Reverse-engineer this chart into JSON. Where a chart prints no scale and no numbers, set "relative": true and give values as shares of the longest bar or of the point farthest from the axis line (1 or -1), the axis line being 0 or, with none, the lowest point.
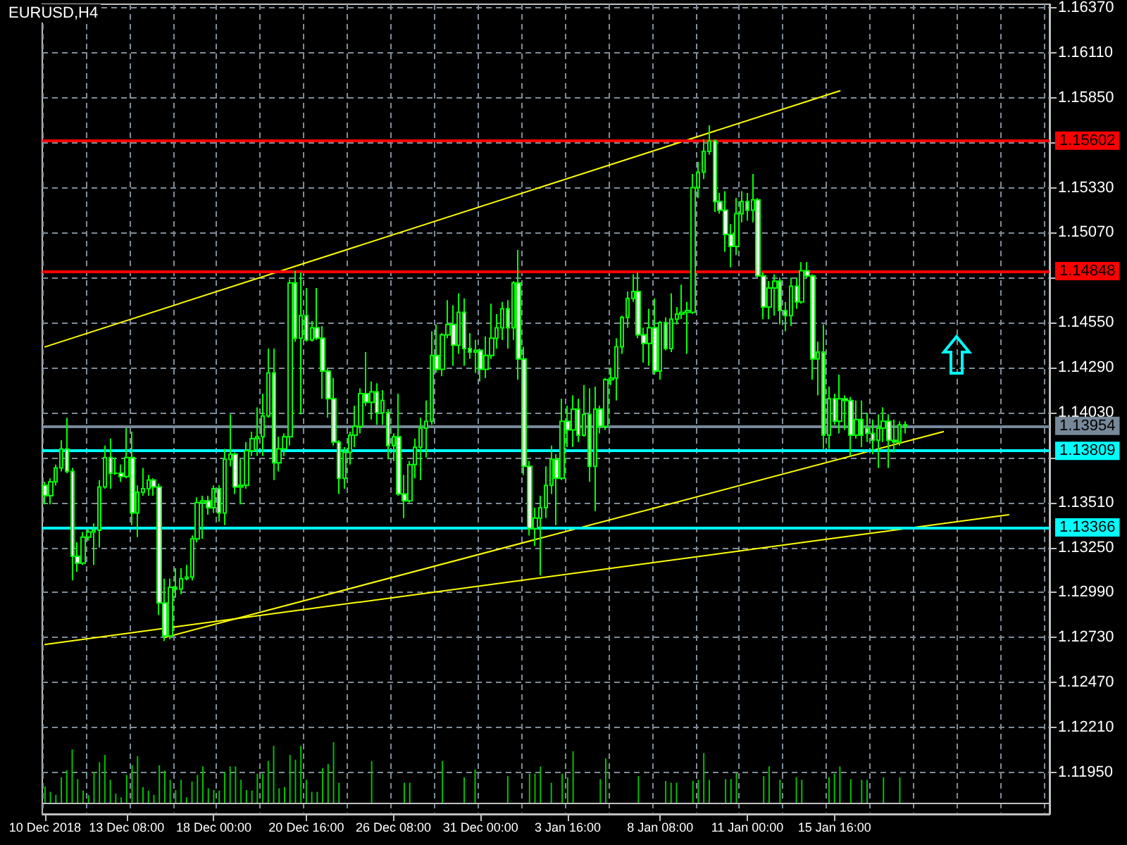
{
  "chart_data": [
    {
      "type": "candlestick",
      "title": "EURUSD,H4",
      "color": "#00ff00",
      "grid": true,
      "categories": [
        "10 Dec 2018",
        null,
        null,
        null,
        null,
        null,
        null,
        null,
        null,
        null,
        null,
        null,
        null,
        null,
        null,
        "13 Dec 08:00",
        null,
        null,
        null,
        null,
        null,
        null,
        null,
        null,
        null,
        null,
        null,
        null,
        null,
        null,
        null,
        "18 Dec 00:00",
        null,
        null,
        null,
        null,
        null,
        null,
        null,
        null,
        null,
        null,
        null,
        null,
        null,
        null,
        null,
        null,
        "20 Dec 16:00",
        null,
        null,
        null,
        null,
        null,
        null,
        null,
        null,
        null,
        null,
        null,
        null,
        null,
        null,
        null,
        "26 Dec 08:00",
        null,
        null,
        null,
        null,
        null,
        null,
        null,
        null,
        null,
        null,
        null,
        null,
        null,
        null,
        null,
        "31 Dec 00:00",
        null,
        null,
        null,
        null,
        null,
        null,
        null,
        null,
        null,
        null,
        null,
        null,
        null,
        null,
        null,
        "3 Jan 16:00",
        null,
        null,
        null,
        null,
        null,
        null,
        null,
        null,
        null,
        null,
        null,
        null,
        null,
        null,
        null,
        null,
        "8 Jan 08:00",
        null,
        null,
        null,
        null,
        null,
        null,
        null,
        null,
        null,
        null,
        null,
        null,
        null,
        null,
        null,
        "11 Jan 00:00",
        null,
        null,
        null,
        null,
        null,
        null,
        null,
        null,
        null,
        null,
        null,
        null,
        null,
        null,
        null,
        "15 Jan 16:00",
        null,
        null,
        null,
        null,
        null,
        null,
        null,
        null,
        null,
        null,
        null,
        null,
        null,
        null,
        null,
        null,
        null,
        null,
        null,
        null,
        null,
        null,
        null,
        null,
        null,
        null,
        null,
        null,
        null,
        null,
        null,
        null,
        null,
        null,
        null,
        null,
        null,
        null,
        null
      ],
      "ohlc": [
        [
          1.1361,
          1.1363,
          1.135,
          1.1355
        ],
        [
          1.1355,
          1.1365,
          1.135,
          1.1363
        ],
        [
          1.1363,
          1.1373,
          1.1361,
          1.1371
        ],
        [
          1.1371,
          1.1387,
          1.1369,
          1.1382
        ],
        [
          1.1382,
          1.14,
          1.1368,
          1.1369
        ],
        [
          1.1369,
          1.1371,
          1.1306,
          1.132
        ],
        [
          1.132,
          1.1328,
          1.1311,
          1.1316
        ],
        [
          1.1316,
          1.1334,
          1.1315,
          1.1331
        ],
        [
          1.1331,
          1.1336,
          1.1329,
          1.1334
        ],
        [
          1.1334,
          1.1339,
          1.1315,
          1.1335
        ],
        [
          1.1335,
          1.1364,
          1.1325,
          1.136
        ],
        [
          1.136,
          1.1384,
          1.1359,
          1.1377
        ],
        [
          1.1377,
          1.1388,
          1.1359,
          1.1368
        ],
        [
          1.1368,
          1.1377,
          1.1367,
          1.1368
        ],
        [
          1.1368,
          1.1373,
          1.1363,
          1.1366
        ],
        [
          1.1366,
          1.1394,
          1.1365,
          1.1377
        ],
        [
          1.1377,
          1.1392,
          1.1338,
          1.1345
        ],
        [
          1.1345,
          1.1361,
          1.1331,
          1.1357
        ],
        [
          1.1357,
          1.1371,
          1.1355,
          1.1359
        ],
        [
          1.1359,
          1.1367,
          1.1355,
          1.1364
        ],
        [
          1.1364,
          1.1365,
          1.1355,
          1.136
        ],
        [
          1.136,
          1.1362,
          1.1286,
          1.1293
        ],
        [
          1.1293,
          1.1307,
          1.1271,
          1.1274
        ],
        [
          1.1274,
          1.1307,
          1.1272,
          1.1302
        ],
        [
          1.1302,
          1.1313,
          1.1296,
          1.1301
        ],
        [
          1.1301,
          1.1313,
          1.1298,
          1.1307
        ],
        [
          1.1307,
          1.1315,
          1.1306,
          1.1308
        ],
        [
          1.1308,
          1.1332,
          1.1306,
          1.133
        ],
        [
          1.133,
          1.1354,
          1.1328,
          1.1351
        ],
        [
          1.1351,
          1.1355,
          1.133,
          1.1352
        ],
        [
          1.1352,
          1.1355,
          1.1344,
          1.1348
        ],
        [
          1.1348,
          1.1361,
          1.1345,
          1.1359
        ],
        [
          1.1359,
          1.1361,
          1.134,
          1.1345
        ],
        [
          1.1345,
          1.1382,
          1.1338,
          1.1376
        ],
        [
          1.1376,
          1.1402,
          1.1372,
          1.1379
        ],
        [
          1.1379,
          1.138,
          1.1356,
          1.136
        ],
        [
          1.136,
          1.1376,
          1.135,
          1.1361
        ],
        [
          1.1361,
          1.1386,
          1.1359,
          1.1381
        ],
        [
          1.1381,
          1.1392,
          1.1378,
          1.1388
        ],
        [
          1.1388,
          1.1406,
          1.1378,
          1.1389
        ],
        [
          1.1389,
          1.1414,
          1.1378,
          1.1401
        ],
        [
          1.1401,
          1.144,
          1.14,
          1.1426
        ],
        [
          1.1426,
          1.144,
          1.1364,
          1.1374
        ],
        [
          1.1374,
          1.1389,
          1.1369,
          1.1382
        ],
        [
          1.1382,
          1.1391,
          1.1378,
          1.1389
        ],
        [
          1.1389,
          1.148,
          1.1384,
          1.1478
        ],
        [
          1.1478,
          1.1485,
          1.1444,
          1.1446
        ],
        [
          1.1446,
          1.1484,
          1.1402,
          1.1459
        ],
        [
          1.1459,
          1.1475,
          1.1444,
          1.1445
        ],
        [
          1.1445,
          1.1456,
          1.1444,
          1.1452
        ],
        [
          1.1452,
          1.1475,
          1.1445,
          1.1446
        ],
        [
          1.1446,
          1.1453,
          1.1411,
          1.1427
        ],
        [
          1.1427,
          1.1429,
          1.14,
          1.1411
        ],
        [
          1.1411,
          1.1423,
          1.1384,
          1.1386
        ],
        [
          1.1386,
          1.1387,
          1.1356,
          1.1365
        ],
        [
          1.1365,
          1.1383,
          1.1359,
          1.138
        ],
        [
          1.138,
          1.1392,
          1.1373,
          1.139
        ],
        [
          1.139,
          1.1407,
          1.1383,
          1.1395
        ],
        [
          1.1395,
          1.1417,
          1.1391,
          1.1414
        ],
        [
          1.1414,
          1.1438,
          1.1407,
          1.1409
        ],
        [
          1.1409,
          1.1421,
          1.1399,
          1.1415
        ],
        [
          1.1415,
          1.142,
          1.1396,
          1.1403
        ],
        [
          1.1403,
          1.1416,
          1.1396,
          1.141
        ],
        [
          1.1403,
          1.1405,
          1.1376,
          1.1384
        ],
        [
          1.1384,
          1.1391,
          1.1375,
          1.1389
        ],
        [
          1.1389,
          1.1414,
          1.1355,
          1.1356
        ],
        [
          1.1356,
          1.1367,
          1.1342,
          1.1352
        ],
        [
          1.1352,
          1.1375,
          1.1351,
          1.1373
        ],
        [
          1.1373,
          1.1388,
          1.1365,
          1.1383
        ],
        [
          1.1383,
          1.14,
          1.1364,
          1.1394
        ],
        [
          1.1394,
          1.141,
          1.1377,
          1.1398
        ],
        [
          1.1398,
          1.145,
          1.1396,
          1.1436
        ],
        [
          1.1436,
          1.1454,
          1.1426,
          1.1428
        ],
        [
          1.1428,
          1.1449,
          1.1424,
          1.1448
        ],
        [
          1.1448,
          1.1468,
          1.1446,
          1.1454
        ],
        [
          1.1454,
          1.1465,
          1.143,
          1.1442
        ],
        [
          1.1442,
          1.1472,
          1.1437,
          1.1461
        ],
        [
          1.1461,
          1.1469,
          1.143,
          1.144
        ],
        [
          1.144,
          1.1449,
          1.1434,
          1.1438
        ],
        [
          1.1438,
          1.1445,
          1.1426,
          1.1439
        ],
        [
          1.1439,
          1.144,
          1.1421,
          1.1428
        ],
        [
          1.1428,
          1.1447,
          1.1423,
          1.1436
        ],
        [
          1.1436,
          1.1466,
          1.1434,
          1.1446
        ],
        [
          1.1446,
          1.146,
          1.144,
          1.1452
        ],
        [
          1.1452,
          1.1467,
          1.1445,
          1.1463
        ],
        [
          1.1463,
          1.1468,
          1.144,
          1.1452
        ],
        [
          1.1452,
          1.1479,
          1.1445,
          1.1478
        ],
        [
          1.1478,
          1.1497,
          1.1422,
          1.1434
        ],
        [
          1.1434,
          1.1441,
          1.1367,
          1.1372
        ],
        [
          1.1372,
          1.1375,
          1.1332,
          1.1336
        ],
        [
          1.1336,
          1.1348,
          1.1326,
          1.1342
        ],
        [
          1.1342,
          1.1355,
          1.1309,
          1.1348
        ],
        [
          1.1348,
          1.1372,
          1.1342,
          1.1361
        ],
        [
          1.1361,
          1.1384,
          1.1356,
          1.1376
        ],
        [
          1.1376,
          1.1379,
          1.1338,
          1.1365
        ],
        [
          1.1365,
          1.1411,
          1.1364,
          1.1398
        ],
        [
          1.1398,
          1.1407,
          1.1383,
          1.1393
        ],
        [
          1.1393,
          1.1413,
          1.1383,
          1.1405
        ],
        [
          1.1405,
          1.1411,
          1.1386,
          1.139
        ],
        [
          1.139,
          1.1419,
          1.1389,
          1.1402
        ],
        [
          1.1402,
          1.1417,
          1.1363,
          1.1372
        ],
        [
          1.1372,
          1.1418,
          1.1346,
          1.1405
        ],
        [
          1.1405,
          1.1407,
          1.1391,
          1.1395
        ],
        [
          1.1395,
          1.1423,
          1.1393,
          1.1422
        ],
        [
          1.1422,
          1.1429,
          1.1419,
          1.1423
        ],
        [
          1.1423,
          1.1446,
          1.141,
          1.1441
        ],
        [
          1.1441,
          1.1459,
          1.1437,
          1.1458
        ],
        [
          1.1458,
          1.1473,
          1.1452,
          1.1469
        ],
        [
          1.1469,
          1.1483,
          1.1467,
          1.1473
        ],
        [
          1.1473,
          1.1484,
          1.1446,
          1.1448
        ],
        [
          1.1448,
          1.1452,
          1.1432,
          1.1443
        ],
        [
          1.1443,
          1.1463,
          1.143,
          1.1452
        ],
        [
          1.1452,
          1.1469,
          1.1425,
          1.1427
        ],
        [
          1.1427,
          1.1456,
          1.1422,
          1.1455
        ],
        [
          1.1455,
          1.1458,
          1.1439,
          1.144
        ],
        [
          1.144,
          1.1472,
          1.1438,
          1.1457
        ],
        [
          1.1457,
          1.1464,
          1.1454,
          1.146
        ],
        [
          1.146,
          1.1477,
          1.1457,
          1.1461
        ],
        [
          1.1461,
          1.1467,
          1.1437,
          1.1462
        ],
        [
          1.1461,
          1.1541,
          1.146,
          1.1533
        ],
        [
          1.1533,
          1.1548,
          1.1527,
          1.1542
        ],
        [
          1.1542,
          1.1561,
          1.1538,
          1.1554
        ],
        [
          1.1554,
          1.1569,
          1.1552,
          1.156
        ],
        [
          1.156,
          1.1561,
          1.1519,
          1.1525
        ],
        [
          1.1525,
          1.153,
          1.1518,
          1.152
        ],
        [
          1.152,
          1.1531,
          1.1496,
          1.1506
        ],
        [
          1.1506,
          1.1512,
          1.1487,
          1.1499
        ],
        [
          1.1499,
          1.1527,
          1.1494,
          1.1518
        ],
        [
          1.1518,
          1.1531,
          1.1513,
          1.1525
        ],
        [
          1.1525,
          1.153,
          1.1514,
          1.152
        ],
        [
          1.152,
          1.1541,
          1.1513,
          1.1526
        ],
        [
          1.1526,
          1.1527,
          1.1481,
          1.1482
        ],
        [
          1.1482,
          1.1484,
          1.1457,
          1.1464
        ],
        [
          1.1464,
          1.1479,
          1.1457,
          1.1475
        ],
        [
          1.1475,
          1.1483,
          1.1459,
          1.1479
        ],
        [
          1.1479,
          1.1481,
          1.1454,
          1.1462
        ],
        [
          1.1462,
          1.1467,
          1.145,
          1.1459
        ],
        [
          1.1459,
          1.1481,
          1.1453,
          1.1476
        ],
        [
          1.1476,
          1.1481,
          1.1463,
          1.1467
        ],
        [
          1.1467,
          1.149,
          1.1466,
          1.1485
        ],
        [
          1.1485,
          1.149,
          1.1481,
          1.1482
        ],
        [
          1.1482,
          1.1483,
          1.1422,
          1.1434
        ],
        [
          1.1434,
          1.1444,
          1.1413,
          1.1438
        ],
        [
          1.1438,
          1.1454,
          1.1382,
          1.139
        ],
        [
          1.139,
          1.1418,
          1.1382,
          1.1411
        ],
        [
          1.1411,
          1.1414,
          1.1396,
          1.1398
        ],
        [
          1.1398,
          1.1425,
          1.1391,
          1.1411
        ],
        [
          1.1411,
          1.1413,
          1.1393,
          1.141
        ],
        [
          1.141,
          1.1412,
          1.1378,
          1.139
        ],
        [
          1.139,
          1.141,
          1.1388,
          1.1399
        ],
        [
          1.1399,
          1.141,
          1.1383,
          1.139
        ],
        [
          1.1394,
          1.1403,
          1.1386,
          1.1391
        ],
        [
          1.1391,
          1.1399,
          1.1379,
          1.1387
        ],
        [
          1.1387,
          1.1402,
          1.1371,
          1.1394
        ],
        [
          1.1394,
          1.1406,
          1.1386,
          1.1398
        ],
        [
          1.1398,
          1.1402,
          1.1371,
          1.1387
        ],
        [
          1.1387,
          1.1399,
          1.138,
          1.1386
        ],
        [
          1.1386,
          1.1398,
          1.1384,
          1.1396
        ],
        [
          1.1396,
          1.1398,
          1.1391,
          1.1395
        ],
        null,
        null,
        null,
        null,
        null,
        null,
        null,
        null,
        null,
        null,
        null,
        null,
        null,
        null,
        null,
        null,
        null,
        null,
        null,
        null,
        null,
        null,
        null,
        null,
        null,
        null
      ],
      "series": [
        {
          "type": "line",
          "color": "#ffff00",
          "values": [
            1.1441,
            null,
            null,
            null,
            null,
            null,
            null,
            null,
            null,
            null,
            null,
            null,
            null,
            null,
            null,
            null,
            null,
            null,
            null,
            null,
            null,
            null,
            null,
            null,
            null,
            null,
            null,
            null,
            null,
            null,
            null,
            null,
            null,
            null,
            null,
            null,
            null,
            null,
            null,
            null,
            null,
            null,
            null,
            null,
            null,
            null,
            null,
            null,
            null,
            null,
            null,
            null,
            null,
            null,
            null,
            null,
            null,
            null,
            null,
            null,
            null,
            null,
            null,
            null,
            null,
            null,
            null,
            null,
            null,
            null,
            null,
            null,
            null,
            null,
            null,
            null,
            null,
            null,
            null,
            null,
            null,
            null,
            null,
            null,
            null,
            null,
            null,
            null,
            null,
            null,
            null,
            null,
            null,
            null,
            null,
            null,
            null,
            null,
            null,
            null,
            null,
            null,
            null,
            null,
            null,
            null,
            null,
            null,
            null,
            null,
            null,
            null,
            null,
            null,
            null,
            null,
            null,
            null,
            null,
            null,
            null,
            null,
            null,
            null,
            null,
            null,
            null,
            null,
            null,
            null,
            null,
            null,
            null,
            null,
            null,
            null,
            null,
            null,
            null,
            null,
            null,
            null,
            null,
            null,
            null,
            null,
            1.1589,
            null,
            null,
            null,
            null,
            null,
            null,
            null,
            null,
            null,
            null,
            null,
            null,
            null,
            null,
            null,
            null,
            null,
            null,
            null,
            null,
            null,
            null,
            null,
            null,
            null,
            null,
            null,
            null,
            null,
            null,
            null,
            null,
            null,
            null,
            null,
            null,
            null,
            null
          ]
        },
        {
          "type": "line",
          "color": "#ffff00",
          "values": [
            null,
            null,
            null,
            null,
            null,
            null,
            null,
            null,
            null,
            null,
            null,
            null,
            null,
            null,
            null,
            null,
            null,
            null,
            null,
            null,
            null,
            null,
            1.1273,
            null,
            null,
            null,
            null,
            null,
            null,
            null,
            null,
            null,
            null,
            null,
            null,
            null,
            null,
            null,
            null,
            null,
            null,
            null,
            null,
            null,
            null,
            null,
            null,
            null,
            null,
            null,
            null,
            null,
            null,
            null,
            null,
            null,
            null,
            null,
            null,
            null,
            null,
            null,
            null,
            null,
            null,
            null,
            null,
            null,
            null,
            null,
            null,
            null,
            null,
            null,
            null,
            null,
            null,
            null,
            null,
            null,
            null,
            null,
            null,
            null,
            null,
            null,
            null,
            null,
            null,
            null,
            null,
            null,
            null,
            null,
            null,
            null,
            null,
            null,
            null,
            null,
            null,
            null,
            null,
            null,
            null,
            null,
            null,
            null,
            null,
            null,
            null,
            null,
            null,
            null,
            null,
            null,
            null,
            null,
            null,
            null,
            null,
            null,
            null,
            null,
            null,
            null,
            null,
            null,
            null,
            null,
            null,
            null,
            null,
            null,
            null,
            null,
            null,
            null,
            null,
            null,
            null,
            null,
            null,
            null,
            null,
            null,
            null,
            null,
            null,
            null,
            null,
            null,
            null,
            null,
            null,
            null,
            null,
            null,
            null,
            null,
            null,
            null,
            null,
            null,
            null,
            1.1392,
            null,
            null,
            null,
            null,
            null,
            null,
            null,
            null,
            null,
            null,
            null,
            null,
            null,
            null,
            null,
            null,
            null,
            null,
            null
          ]
        },
        {
          "type": "line",
          "color": "#ffff00",
          "values": [
            1.1269,
            null,
            null,
            null,
            null,
            null,
            null,
            null,
            null,
            null,
            null,
            null,
            null,
            null,
            null,
            null,
            null,
            null,
            null,
            null,
            null,
            null,
            null,
            null,
            null,
            null,
            null,
            null,
            null,
            null,
            null,
            null,
            null,
            null,
            null,
            null,
            null,
            null,
            null,
            null,
            null,
            null,
            null,
            null,
            null,
            null,
            null,
            null,
            null,
            null,
            null,
            null,
            null,
            null,
            null,
            null,
            null,
            null,
            null,
            null,
            null,
            null,
            null,
            null,
            null,
            null,
            null,
            null,
            null,
            null,
            null,
            null,
            null,
            null,
            null,
            null,
            null,
            null,
            null,
            null,
            null,
            null,
            null,
            null,
            null,
            null,
            null,
            null,
            null,
            null,
            null,
            null,
            null,
            null,
            null,
            null,
            null,
            null,
            null,
            null,
            null,
            null,
            null,
            null,
            null,
            null,
            null,
            null,
            null,
            null,
            null,
            null,
            null,
            null,
            null,
            null,
            null,
            null,
            null,
            null,
            null,
            null,
            null,
            null,
            null,
            null,
            null,
            null,
            null,
            null,
            null,
            null,
            null,
            null,
            null,
            null,
            null,
            null,
            null,
            null,
            null,
            null,
            null,
            null,
            null,
            null,
            null,
            null,
            null,
            null,
            null,
            null,
            null,
            null,
            null,
            null,
            null,
            null,
            null,
            null,
            null,
            null,
            null,
            null,
            null,
            null,
            null,
            null,
            null,
            null,
            null,
            null,
            null,
            null,
            null,
            null,
            null,
            1.1344,
            null,
            null,
            null,
            null,
            null,
            null,
            null
          ]
        }
      ],
      "ylim": [
        1.1171,
        1.1639
      ],
      "yticks": [
        {
          "value": 1.1637,
          "label": "1.16370"
        },
        {
          "value": 1.1611,
          "label": "1.16110"
        },
        {
          "value": 1.1585,
          "label": "1.15850"
        },
        {
          "value": 1.1559,
          "label": null
        },
        {
          "value": 1.1533,
          "label": "1.15330"
        },
        {
          "value": 1.1507,
          "label": "1.15070"
        },
        {
          "value": 1.1481,
          "label": null
        },
        {
          "value": 1.1455,
          "label": "1.14550"
        },
        {
          "value": 1.1429,
          "label": "1.14290"
        },
        {
          "value": 1.1403,
          "label": "1.14030"
        },
        {
          "value": 1.1377,
          "label": null
        },
        {
          "value": 1.1351,
          "label": "1.13510"
        },
        {
          "value": 1.1325,
          "label": "1.13250"
        },
        {
          "value": 1.1299,
          "label": "1.12990"
        },
        {
          "value": 1.1273,
          "label": "1.12730"
        },
        {
          "value": 1.1247,
          "label": "1.12470"
        },
        {
          "value": 1.1221,
          "label": "1.12210"
        },
        {
          "value": 1.1195,
          "label": "1.11950"
        }
      ],
      "ref_lines": [
        {
          "axis": "y",
          "value": 1.15602,
          "label": "1.15602",
          "color": "#ff0000"
        },
        {
          "axis": "y",
          "value": 1.14848,
          "label": "1.14848",
          "color": "#ff0000"
        },
        {
          "axis": "y",
          "value": 1.13954,
          "label": "1.13954",
          "color": "#778899"
        },
        {
          "axis": "y",
          "value": 1.13809,
          "label": "1.13809",
          "color": "#00ffff"
        },
        {
          "axis": "y",
          "value": 1.13366,
          "label": "1.13366",
          "color": "#00ffff"
        }
      ]
    },
    {
      "type": "bar",
      "relative": true,
      "color": "#00c000",
      "categories": [
        null,
        null,
        null,
        null,
        null,
        null,
        null,
        null,
        null,
        null,
        null,
        null,
        null,
        null,
        null,
        null,
        null,
        null,
        null,
        null,
        null,
        null,
        null,
        null,
        null,
        null,
        null,
        null,
        null,
        null,
        null,
        null,
        null,
        null,
        null,
        null,
        null,
        null,
        null,
        null,
        null,
        null,
        null,
        null,
        null,
        null,
        null,
        null,
        null,
        null,
        null,
        null,
        null,
        null,
        null,
        null,
        null,
        null,
        null,
        null,
        null,
        null,
        null,
        null,
        null,
        null,
        null,
        null,
        null,
        null,
        null,
        null,
        null,
        null,
        null,
        null,
        null,
        null,
        null,
        null,
        null,
        null,
        null,
        null,
        null,
        null,
        null,
        null,
        null,
        null,
        null,
        null,
        null,
        null,
        null,
        null,
        null,
        null,
        null,
        null,
        null,
        null,
        null,
        null,
        null,
        null,
        null,
        null,
        null,
        null,
        null,
        null,
        null,
        null,
        null,
        null,
        null,
        null,
        null,
        null,
        null,
        null,
        null,
        null,
        null,
        null,
        null,
        null,
        null,
        null,
        null,
        null,
        null,
        null,
        null,
        null,
        null,
        null,
        null,
        null,
        null,
        null,
        null,
        null,
        null,
        null,
        null,
        null,
        null,
        null,
        null,
        null,
        null,
        null,
        null,
        null,
        null,
        null,
        null,
        null,
        null,
        null,
        null,
        null,
        null,
        null,
        null,
        null,
        null,
        null,
        null,
        null,
        null,
        null,
        null,
        null,
        null,
        null,
        null,
        null,
        null,
        null,
        null,
        null,
        null
      ],
      "values": [
        0.27,
        0.18,
        0.13,
        0.42,
        0.54,
        0.88,
        0.39,
        0.2,
        0.13,
        0.51,
        0.67,
        0.79,
        0.38,
        0.15,
        0.09,
        0.46,
        0.62,
        0.77,
        0.26,
        0.2,
        0.13,
        0.62,
        0.53,
        0.38,
        0.21,
        0.38,
        0.09,
        0.35,
        0.46,
        0.6,
        0.24,
        0.21,
        0.2,
        0.51,
        0.6,
        0.6,
        0.38,
        0.21,
        0.2,
        0.48,
        0.48,
        0.69,
        0.94,
        0.24,
        0.26,
        0.79,
        0.71,
        0.94,
        0.38,
        0.18,
        0.18,
        0.57,
        0.64,
        1,
        0.33,
        null,
        null,
        null,
        null,
        null,
        0.69,
        null,
        null,
        null,
        null,
        null,
        0.33,
        0.33,
        null,
        null,
        null,
        null,
        null,
        0.69,
        null,
        null,
        null,
        0.42,
        null,
        0.55,
        null,
        null,
        null,
        null,
        null,
        0.44,
        null,
        null,
        null,
        0.48,
        0.48,
        0.6,
        null,
        0.33,
        null,
        0.48,
        0.42,
        0.85,
        null,
        null,
        null,
        null,
        0.39,
        0.73,
        null,
        null,
        null,
        null,
        null,
        0.44,
        null,
        null,
        null,
        null,
        0.36,
        0.33,
        0.33,
        null,
        null,
        0.36,
        0.38,
        0.82,
        0.38,
        null,
        null,
        0.39,
        0.39,
        0.49,
        null,
        null,
        null,
        null,
        0.44,
        0.6,
        null,
        0.38,
        null,
        null,
        0.42,
        0.38,
        null,
        null,
        null,
        null,
        0.42,
        0.48,
        0.6,
        null,
        0.39,
        null,
        0.38,
        0.38,
        null,
        null,
        0.42,
        null,
        null,
        0.42,
        null,
        null,
        null,
        null,
        null,
        null,
        null,
        null,
        null,
        null,
        null,
        null,
        null,
        null,
        null,
        null,
        null,
        null,
        null,
        null,
        null,
        null,
        null,
        null,
        null,
        null,
        null
      ]
    }
  ]
}
